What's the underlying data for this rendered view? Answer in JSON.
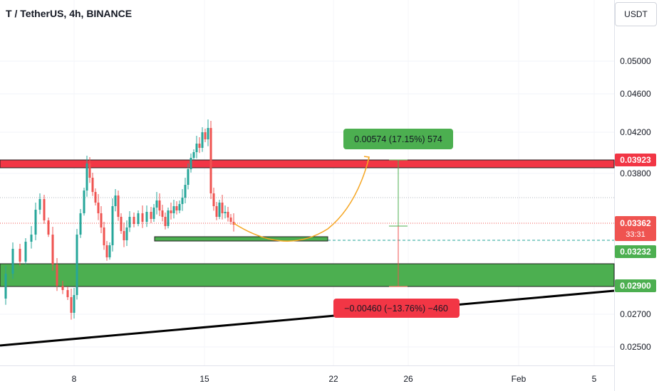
{
  "title": "T / TetherUS, 4h, BINANCE",
  "currency_button": "USDT",
  "colors": {
    "up": "#26a69a",
    "down": "#ef5350",
    "red_zone": "#f23645",
    "green_zone": "#4caf50",
    "arrow": "#f5a623"
  },
  "chart_data": {
    "type": "candlestick",
    "y_ticks": [
      "0.05000",
      "0.04600",
      "0.04200",
      "0.03800",
      "0.02700",
      "0.02500"
    ],
    "x_ticks": [
      "8",
      "15",
      "22",
      "26",
      "Feb",
      "5"
    ],
    "price_labels": {
      "resistance": "0.03923",
      "last": "0.03362",
      "countdown": "33:31",
      "support_line": "0.03232",
      "support_zone": "0.02900"
    },
    "measure_up": "0.00574 (17.15%) 574",
    "measure_down": "−0.00460 (−13.76%) −460"
  }
}
